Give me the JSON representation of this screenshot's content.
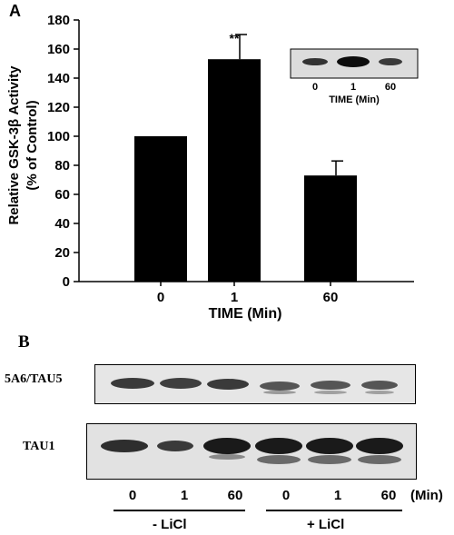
{
  "panel_a": {
    "letter": "A",
    "y_axis_label_line1": "Relative GSK-3β Activity",
    "y_axis_label_line2": "(% of Control)",
    "x_axis_label": "TIME (Min)",
    "significance_marker": "**",
    "inset": {
      "lane_labels": [
        "0",
        "1",
        "60"
      ],
      "x_axis_label": "TIME (Min)"
    }
  },
  "chart_data": {
    "type": "bar",
    "categories": [
      "0",
      "1",
      "60"
    ],
    "values": [
      100,
      153,
      73
    ],
    "error": [
      0,
      17,
      10
    ],
    "xlabel": "TIME (Min)",
    "ylabel": "Relative GSK-3β Activity (% of Control)",
    "ylim": [
      0,
      180
    ],
    "yticks": [
      0,
      20,
      40,
      60,
      80,
      100,
      120,
      140,
      160,
      180
    ],
    "grid": false,
    "bar_color": "#000000"
  },
  "panel_b": {
    "letter": "B",
    "blot_top_label": "5A6/TAU5",
    "blot_bottom_label": "TAU1",
    "lane_labels": [
      "0",
      "1",
      "60",
      "0",
      "1",
      "60"
    ],
    "unit_label": "(Min)",
    "group_minus_label": "- LiCl",
    "group_plus_label": "+ LiCl"
  }
}
